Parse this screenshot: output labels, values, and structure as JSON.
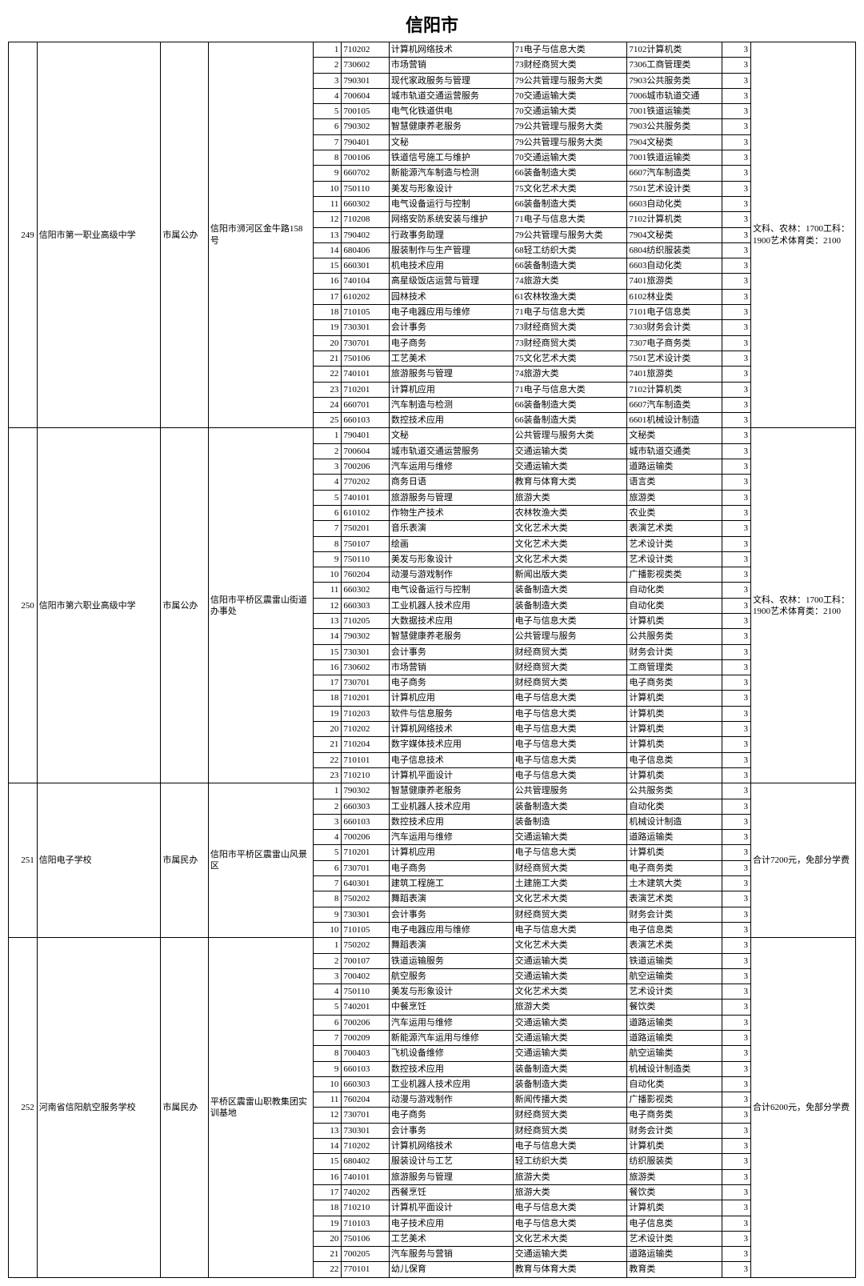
{
  "title": "信阳市",
  "schools": [
    {
      "id": "249",
      "name": "信阳市第一职业高级中学",
      "ownership": "市属公办",
      "address": "信阳市浉河区金牛路158号",
      "note": "文科、农林：1700工科：1900艺术体育类：2100",
      "rows": [
        {
          "n": "1",
          "code": "710202",
          "major": "计算机网络技术",
          "cat1": "71电子与信息大类",
          "cat2": "7102计算机类",
          "yr": "3"
        },
        {
          "n": "2",
          "code": "730602",
          "major": "市场营销",
          "cat1": "73财经商贸大类",
          "cat2": "7306工商管理类",
          "yr": "3"
        },
        {
          "n": "3",
          "code": "790301",
          "major": "现代家政服务与管理",
          "cat1": "79公共管理与服务大类",
          "cat2": "7903公共服务类",
          "yr": "3"
        },
        {
          "n": "4",
          "code": "700604",
          "major": "城市轨道交通运营服务",
          "cat1": "70交通运输大类",
          "cat2": "7006城市轨道交通",
          "yr": "3"
        },
        {
          "n": "5",
          "code": "700105",
          "major": "电气化铁道供电",
          "cat1": "70交通运输大类",
          "cat2": "7001铁道运输类",
          "yr": "3"
        },
        {
          "n": "6",
          "code": "790302",
          "major": "智慧健康养老服务",
          "cat1": "79公共管理与服务大类",
          "cat2": "7903公共服务类",
          "yr": "3"
        },
        {
          "n": "7",
          "code": "790401",
          "major": "文秘",
          "cat1": "79公共管理与服务大类",
          "cat2": "7904文秘类",
          "yr": "3"
        },
        {
          "n": "8",
          "code": "700106",
          "major": "铁道信号施工与维护",
          "cat1": "70交通运输大类",
          "cat2": "7001铁道运输类",
          "yr": "3"
        },
        {
          "n": "9",
          "code": "660702",
          "major": "新能源汽车制造与检测",
          "cat1": "66装备制造大类",
          "cat2": "6607汽车制造类",
          "yr": "3"
        },
        {
          "n": "10",
          "code": "750110",
          "major": "美发与形象设计",
          "cat1": "75文化艺术大类",
          "cat2": "7501艺术设计类",
          "yr": "3"
        },
        {
          "n": "11",
          "code": "660302",
          "major": "电气设备运行与控制",
          "cat1": "66装备制造大类",
          "cat2": "6603自动化类",
          "yr": "3"
        },
        {
          "n": "12",
          "code": "710208",
          "major": "网络安防系统安装与维护",
          "cat1": "71电子与信息大类",
          "cat2": "7102计算机类",
          "yr": "3"
        },
        {
          "n": "13",
          "code": "790402",
          "major": "行政事务助理",
          "cat1": "79公共管理与服务大类",
          "cat2": "7904文秘类",
          "yr": "3"
        },
        {
          "n": "14",
          "code": "680406",
          "major": "服装制作与生产管理",
          "cat1": "68轻工纺织大类",
          "cat2": "6804纺织服装类",
          "yr": "3"
        },
        {
          "n": "15",
          "code": "660301",
          "major": "机电技术应用",
          "cat1": "66装备制造大类",
          "cat2": "6603自动化类",
          "yr": "3"
        },
        {
          "n": "16",
          "code": "740104",
          "major": "高星级饭店运营与管理",
          "cat1": "74旅游大类",
          "cat2": "7401旅游类",
          "yr": "3"
        },
        {
          "n": "17",
          "code": "610202",
          "major": "园林技术",
          "cat1": "61农林牧渔大类",
          "cat2": "6102林业类",
          "yr": "3"
        },
        {
          "n": "18",
          "code": "710105",
          "major": "电子电器应用与维修",
          "cat1": "71电子与信息大类",
          "cat2": "7101电子信息类",
          "yr": "3"
        },
        {
          "n": "19",
          "code": "730301",
          "major": "会计事务",
          "cat1": "73财经商贸大类",
          "cat2": "7303财务会计类",
          "yr": "3"
        },
        {
          "n": "20",
          "code": "730701",
          "major": "电子商务",
          "cat1": "73财经商贸大类",
          "cat2": "7307电子商务类",
          "yr": "3"
        },
        {
          "n": "21",
          "code": "750106",
          "major": "工艺美术",
          "cat1": "75文化艺术大类",
          "cat2": "7501艺术设计类",
          "yr": "3"
        },
        {
          "n": "22",
          "code": "740101",
          "major": "旅游服务与管理",
          "cat1": "74旅游大类",
          "cat2": "7401旅游类",
          "yr": "3"
        },
        {
          "n": "23",
          "code": "710201",
          "major": "计算机应用",
          "cat1": "71电子与信息大类",
          "cat2": "7102计算机类",
          "yr": "3"
        },
        {
          "n": "24",
          "code": "660701",
          "major": "汽车制造与检测",
          "cat1": "66装备制造大类",
          "cat2": "6607汽车制造类",
          "yr": "3"
        },
        {
          "n": "25",
          "code": "660103",
          "major": "数控技术应用",
          "cat1": "66装备制造大类",
          "cat2": "6601机械设计制造",
          "yr": "3"
        }
      ]
    },
    {
      "id": "250",
      "name": "信阳市第六职业高级中学",
      "ownership": "市属公办",
      "address": "信阳市平桥区震雷山街道办事处",
      "note": "文科、农林：1700工科：1900艺术体育类：2100",
      "rows": [
        {
          "n": "1",
          "code": "790401",
          "major": "文秘",
          "cat1": "公共管理与服务大类",
          "cat2": "文秘类",
          "yr": "3"
        },
        {
          "n": "2",
          "code": "700604",
          "major": "城市轨道交通运营服务",
          "cat1": "交通运输大类",
          "cat2": "城市轨道交通类",
          "yr": "3"
        },
        {
          "n": "3",
          "code": "700206",
          "major": "汽车运用与维修",
          "cat1": "交通运输大类",
          "cat2": "道路运输类",
          "yr": "3"
        },
        {
          "n": "4",
          "code": "770202",
          "major": "商务日语",
          "cat1": "教育与体育大类",
          "cat2": "语言类",
          "yr": "3"
        },
        {
          "n": "5",
          "code": "740101",
          "major": "旅游服务与管理",
          "cat1": "旅游大类",
          "cat2": "旅游类",
          "yr": "3"
        },
        {
          "n": "6",
          "code": "610102",
          "major": "作物生产技术",
          "cat1": "农林牧渔大类",
          "cat2": "农业类",
          "yr": "3"
        },
        {
          "n": "7",
          "code": "750201",
          "major": "音乐表演",
          "cat1": "文化艺术大类",
          "cat2": "表演艺术类",
          "yr": "3"
        },
        {
          "n": "8",
          "code": "750107",
          "major": "绘画",
          "cat1": "文化艺术大类",
          "cat2": "艺术设计类",
          "yr": "3"
        },
        {
          "n": "9",
          "code": "750110",
          "major": "美发与形象设计",
          "cat1": "文化艺术大类",
          "cat2": "艺术设计类",
          "yr": "3"
        },
        {
          "n": "10",
          "code": "760204",
          "major": "动漫与游戏制作",
          "cat1": "新闻出版大类",
          "cat2": "广播影视类类",
          "yr": "3"
        },
        {
          "n": "11",
          "code": "660302",
          "major": "电气设备运行与控制",
          "cat1": "装备制造大类",
          "cat2": "自动化类",
          "yr": "3"
        },
        {
          "n": "12",
          "code": "660303",
          "major": "工业机器人技术应用",
          "cat1": "装备制造大类",
          "cat2": "自动化类",
          "yr": "3"
        },
        {
          "n": "13",
          "code": "710205",
          "major": "大数据技术应用",
          "cat1": "电子与信息大类",
          "cat2": "计算机类",
          "yr": "3"
        },
        {
          "n": "14",
          "code": "790302",
          "major": "智慧健康养老服务",
          "cat1": "公共管理与服务",
          "cat2": "公共服务类",
          "yr": "3"
        },
        {
          "n": "15",
          "code": "730301",
          "major": "会计事务",
          "cat1": "财经商贸大类",
          "cat2": "财务会计类",
          "yr": "3"
        },
        {
          "n": "16",
          "code": "730602",
          "major": "市场营销",
          "cat1": "财经商贸大类",
          "cat2": "工商管理类",
          "yr": "3"
        },
        {
          "n": "17",
          "code": "730701",
          "major": "电子商务",
          "cat1": "财经商贸大类",
          "cat2": "电子商务类",
          "yr": "3"
        },
        {
          "n": "18",
          "code": "710201",
          "major": "计算机应用",
          "cat1": "电子与信息大类",
          "cat2": "计算机类",
          "yr": "3"
        },
        {
          "n": "19",
          "code": "710203",
          "major": "软件与信息服务",
          "cat1": "电子与信息大类",
          "cat2": "计算机类",
          "yr": "3"
        },
        {
          "n": "20",
          "code": "710202",
          "major": "计算机网络技术",
          "cat1": "电子与信息大类",
          "cat2": "计算机类",
          "yr": "3"
        },
        {
          "n": "21",
          "code": "710204",
          "major": "数字媒体技术应用",
          "cat1": "电子与信息大类",
          "cat2": "计算机类",
          "yr": "3"
        },
        {
          "n": "22",
          "code": "710101",
          "major": "电子信息技术",
          "cat1": "电子与信息大类",
          "cat2": "电子信息类",
          "yr": "3"
        },
        {
          "n": "23",
          "code": "710210",
          "major": "计算机平面设计",
          "cat1": "电子与信息大类",
          "cat2": "计算机类",
          "yr": "3"
        }
      ]
    },
    {
      "id": "251",
      "name": "信阳电子学校",
      "ownership": "市属民办",
      "address": "信阳市平桥区震雷山风景区",
      "note": "合计7200元，免部分学费",
      "rows": [
        {
          "n": "1",
          "code": "790302",
          "major": "智慧健康养老服务",
          "cat1": "公共管理服务",
          "cat2": "公共服务类",
          "yr": "3"
        },
        {
          "n": "2",
          "code": "660303",
          "major": "工业机器人技术应用",
          "cat1": "装备制造大类",
          "cat2": "自动化类",
          "yr": "3"
        },
        {
          "n": "3",
          "code": "660103",
          "major": "数控技术应用",
          "cat1": "装备制造",
          "cat2": "机械设计制造",
          "yr": "3"
        },
        {
          "n": "4",
          "code": "700206",
          "major": "汽车运用与维修",
          "cat1": "交通运输大类",
          "cat2": "道路运输类",
          "yr": "3"
        },
        {
          "n": "5",
          "code": "710201",
          "major": "计算机应用",
          "cat1": "电子与信息大类",
          "cat2": "计算机类",
          "yr": "3"
        },
        {
          "n": "6",
          "code": "730701",
          "major": "电子商务",
          "cat1": "财经商贸大类",
          "cat2": "电子商务类",
          "yr": "3"
        },
        {
          "n": "7",
          "code": "640301",
          "major": "建筑工程施工",
          "cat1": "土建施工大类",
          "cat2": "土木建筑大类",
          "yr": "3"
        },
        {
          "n": "8",
          "code": "750202",
          "major": "舞蹈表演",
          "cat1": "文化艺术大类",
          "cat2": "表演艺术类",
          "yr": "3"
        },
        {
          "n": "9",
          "code": "730301",
          "major": "会计事务",
          "cat1": "财经商贸大类",
          "cat2": "财务会计类",
          "yr": "3"
        },
        {
          "n": "10",
          "code": "710105",
          "major": "电子电器应用与维修",
          "cat1": "电子与信息大类",
          "cat2": "电子信息类",
          "yr": "3"
        }
      ]
    },
    {
      "id": "252",
      "name": "河南省信阳航空服务学校",
      "ownership": "市属民办",
      "address": "平桥区震雷山职教集团实训基地",
      "note": "合计6200元，免部分学费",
      "rows": [
        {
          "n": "1",
          "code": "750202",
          "major": "舞蹈表演",
          "cat1": "文化艺术大类",
          "cat2": "表演艺术类",
          "yr": "3"
        },
        {
          "n": "2",
          "code": "700107",
          "major": "铁道运输服务",
          "cat1": "交通运输大类",
          "cat2": "铁道运输类",
          "yr": "3"
        },
        {
          "n": "3",
          "code": "700402",
          "major": "航空服务",
          "cat1": "交通运输大类",
          "cat2": "航空运输类",
          "yr": "3"
        },
        {
          "n": "4",
          "code": "750110",
          "major": "美发与形象设计",
          "cat1": "文化艺术大类",
          "cat2": "艺术设计类",
          "yr": "3"
        },
        {
          "n": "5",
          "code": "740201",
          "major": "中餐烹饪",
          "cat1": "旅游大类",
          "cat2": "餐饮类",
          "yr": "3"
        },
        {
          "n": "6",
          "code": "700206",
          "major": "汽车运用与维修",
          "cat1": "交通运输大类",
          "cat2": "道路运输类",
          "yr": "3"
        },
        {
          "n": "7",
          "code": "700209",
          "major": "新能源汽车运用与维修",
          "cat1": "交通运输大类",
          "cat2": "道路运输类",
          "yr": "3"
        },
        {
          "n": "8",
          "code": "700403",
          "major": "飞机设备维修",
          "cat1": "交通运输大类",
          "cat2": "航空运输类",
          "yr": "3"
        },
        {
          "n": "9",
          "code": "660103",
          "major": "数控技术应用",
          "cat1": "装备制造大类",
          "cat2": "机械设计制造类",
          "yr": "3"
        },
        {
          "n": "10",
          "code": "660303",
          "major": "工业机器人技术应用",
          "cat1": "装备制造大类",
          "cat2": "自动化类",
          "yr": "3"
        },
        {
          "n": "11",
          "code": "760204",
          "major": "动漫与游戏制作",
          "cat1": "新闻传播大类",
          "cat2": "广播影视类",
          "yr": "3"
        },
        {
          "n": "12",
          "code": "730701",
          "major": "电子商务",
          "cat1": "财经商贸大类",
          "cat2": "电子商务类",
          "yr": "3"
        },
        {
          "n": "13",
          "code": "730301",
          "major": "会计事务",
          "cat1": "财经商贸大类",
          "cat2": "财务会计类",
          "yr": "3"
        },
        {
          "n": "14",
          "code": "710202",
          "major": "计算机网络技术",
          "cat1": "电子与信息大类",
          "cat2": "计算机类",
          "yr": "3"
        },
        {
          "n": "15",
          "code": "680402",
          "major": "服装设计与工艺",
          "cat1": "轻工纺织大类",
          "cat2": "纺织服装类",
          "yr": "3"
        },
        {
          "n": "16",
          "code": "740101",
          "major": "旅游服务与管理",
          "cat1": "旅游大类",
          "cat2": "旅游类",
          "yr": "3"
        },
        {
          "n": "17",
          "code": "740202",
          "major": "西餐烹饪",
          "cat1": "旅游大类",
          "cat2": "餐饮类",
          "yr": "3"
        },
        {
          "n": "18",
          "code": "710210",
          "major": "计算机平面设计",
          "cat1": "电子与信息大类",
          "cat2": "计算机类",
          "yr": "3"
        },
        {
          "n": "19",
          "code": "710103",
          "major": "电子技术应用",
          "cat1": "电子与信息大类",
          "cat2": "电子信息类",
          "yr": "3"
        },
        {
          "n": "20",
          "code": "750106",
          "major": "工艺美术",
          "cat1": "文化艺术大类",
          "cat2": "艺术设计类",
          "yr": "3"
        },
        {
          "n": "21",
          "code": "700205",
          "major": "汽车服务与营销",
          "cat1": "交通运输大类",
          "cat2": "道路运输类",
          "yr": "3"
        },
        {
          "n": "22",
          "code": "770101",
          "major": "幼儿保育",
          "cat1": "教育与体育大类",
          "cat2": "教育类",
          "yr": "3"
        }
      ]
    }
  ]
}
